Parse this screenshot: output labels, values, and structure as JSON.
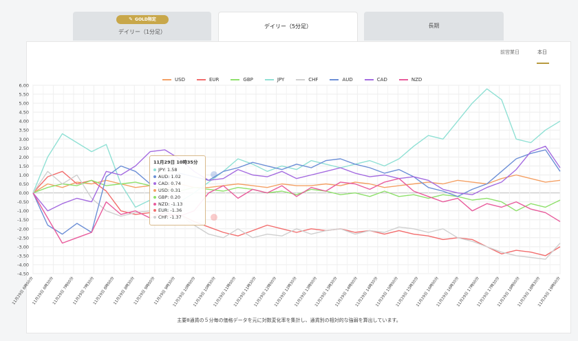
{
  "tabs": [
    {
      "label": "デイリー（1分足）",
      "badge": "GOLD限定",
      "active": false
    },
    {
      "label": "デイリー（5分足）",
      "active": true
    },
    {
      "label": "長期",
      "active": false
    }
  ],
  "subtabs": [
    "前営業日",
    "本日"
  ],
  "footnote": "主要8通貨の５分毎の価格データを元に対数変化率を集計し、通貨別の相対的な強弱を算出しています。",
  "tooltip": {
    "title": "11月29日 10時35分",
    "rows": [
      "JPY: 1.58",
      "AUD: 1.02",
      "CAD: 0.74",
      "USD: 0.31",
      "GBP: 0.20",
      "NZD: -1.13",
      "EUR: -1.36",
      "CHF: -1.37"
    ],
    "colors": [
      "#8fe0d4",
      "#6b8ed6",
      "#a46be0",
      "#f4a064",
      "#8ee06b",
      "#e85a9b",
      "#f26c6c",
      "#cfcfcf"
    ]
  },
  "chart_data": {
    "type": "line",
    "ylim": [
      -4.5,
      6.0
    ],
    "yticks": [
      "6.00",
      "5.50",
      "5.00",
      "4.50",
      "4.00",
      "3.50",
      "3.00",
      "2.50",
      "2.00",
      "1.50",
      "1.00",
      "0.50",
      "0.00",
      "-0.50",
      "-1.00",
      "-1.50",
      "-2.00",
      "-2.50",
      "-3.00",
      "-3.50",
      "-4.00",
      "-4.50"
    ],
    "x_labels": [
      "11月29日 6時00分",
      "11月29日 6時30分",
      "11月29日 7時00分",
      "11月29日 7時30分",
      "11月29日 8時00分",
      "11月29日 8時30分",
      "11月29日 9時00分",
      "11月29日 9時30分",
      "11月29日 10時00分",
      "11月29日 10時30分",
      "11月29日 11時00分",
      "11月29日 11時30分",
      "11月29日 12時00分",
      "11月29日 12時30分",
      "11月29日 13時00分",
      "11月29日 13時30分",
      "11月29日 14時00分",
      "11月29日 14時30分",
      "11月29日 15時00分",
      "11月29日 15時30分",
      "11月29日 16時00分",
      "11月29日 16時30分",
      "11月29日 17時00分",
      "11月29日 17時30分",
      "11月29日 18時00分",
      "11月29日 18時30分",
      "11月29日 19時00分"
    ],
    "series": [
      {
        "name": "USD",
        "color": "#f4a064",
        "values": [
          0,
          0.5,
          0.3,
          0.6,
          0.5,
          0.7,
          0.5,
          0.3,
          0.4,
          0.2,
          0.5,
          0.3,
          0.3,
          0.4,
          0.5,
          0.4,
          0.3,
          0.5,
          0.4,
          0.4,
          0.5,
          0.4,
          0.6,
          0.5,
          0.3,
          0.4,
          0.5,
          0.6,
          0.5,
          0.7,
          0.6,
          0.5,
          0.8,
          1.0,
          0.8,
          0.6,
          0.7
        ]
      },
      {
        "name": "EUR",
        "color": "#f26c6c",
        "values": [
          0,
          0.9,
          1.2,
          0.5,
          0.7,
          0.1,
          -1.0,
          -1.2,
          -1.1,
          -1.3,
          -1.2,
          -1.6,
          -1.9,
          -2.2,
          -2.4,
          -2.1,
          -1.8,
          -2.0,
          -2.2,
          -2.0,
          -2.1,
          -2.0,
          -2.2,
          -2.1,
          -2.3,
          -2.1,
          -2.3,
          -2.4,
          -2.6,
          -2.5,
          -2.6,
          -3.0,
          -3.4,
          -3.2,
          -3.3,
          -3.5,
          -3.0
        ]
      },
      {
        "name": "GBP",
        "color": "#8ee06b",
        "values": [
          0,
          0.3,
          0.5,
          0.4,
          0.7,
          0.4,
          0.5,
          0.6,
          0.4,
          0.2,
          0.1,
          0.3,
          0.2,
          0.1,
          0.3,
          0.2,
          0.0,
          0.1,
          -0.1,
          0.2,
          0.1,
          -0.1,
          0.0,
          -0.2,
          0.1,
          -0.2,
          -0.1,
          -0.3,
          -0.1,
          -0.2,
          -0.4,
          -0.3,
          -0.5,
          -1.0,
          -0.6,
          -0.8,
          -0.4
        ]
      },
      {
        "name": "JPY",
        "color": "#8fe0d4",
        "values": [
          0,
          2.0,
          3.3,
          2.8,
          2.3,
          2.7,
          0.5,
          -0.8,
          -0.4,
          -1.0,
          -0.5,
          0.0,
          0.6,
          1.2,
          1.9,
          1.6,
          1.2,
          1.5,
          1.3,
          1.8,
          1.6,
          1.4,
          1.6,
          1.8,
          1.5,
          1.9,
          2.6,
          3.2,
          3.0,
          4.0,
          5.0,
          5.8,
          5.2,
          3.0,
          2.8,
          3.5,
          4.0
        ]
      },
      {
        "name": "CHF",
        "color": "#cfcfcf",
        "values": [
          0,
          1.2,
          0.5,
          1.0,
          -0.3,
          -1.0,
          -1.3,
          -1.1,
          -1.0,
          -0.5,
          -1.2,
          -1.8,
          -2.3,
          -2.5,
          -2.0,
          -2.5,
          -2.3,
          -2.4,
          -2.0,
          -2.3,
          -2.1,
          -2.0,
          -2.3,
          -2.1,
          -2.2,
          -1.9,
          -2.0,
          -2.2,
          -2.0,
          -2.5,
          -2.7,
          -3.0,
          -3.3,
          -3.5,
          -3.6,
          -3.7,
          -2.8
        ]
      },
      {
        "name": "AUD",
        "color": "#6b8ed6",
        "values": [
          0,
          -1.8,
          -2.3,
          -1.7,
          -2.2,
          0.9,
          1.5,
          1.2,
          0.5,
          0.8,
          1.1,
          0.9,
          0.7,
          1.2,
          1.4,
          1.7,
          1.5,
          1.3,
          1.6,
          1.4,
          1.8,
          1.9,
          1.6,
          1.4,
          1.1,
          1.3,
          0.9,
          0.3,
          0.1,
          -0.2,
          0.2,
          0.5,
          1.2,
          1.9,
          2.2,
          2.4,
          1.2
        ]
      },
      {
        "name": "CAD",
        "color": "#a46be0",
        "values": [
          0,
          -1.0,
          -0.6,
          -0.3,
          -0.5,
          1.2,
          1.0,
          1.5,
          2.3,
          2.4,
          1.9,
          1.2,
          0.7,
          0.8,
          1.3,
          1.0,
          0.9,
          1.2,
          0.8,
          1.0,
          1.2,
          1.4,
          1.1,
          0.9,
          1.0,
          0.8,
          0.9,
          0.7,
          0.2,
          0.0,
          -0.1,
          0.3,
          0.6,
          1.3,
          2.3,
          2.6,
          1.4
        ]
      },
      {
        "name": "NZD",
        "color": "#e85a9b",
        "values": [
          0,
          -1.4,
          -2.8,
          -2.5,
          -2.2,
          -0.5,
          -1.2,
          -1.0,
          -1.4,
          -1.1,
          -1.3,
          -1.0,
          0.0,
          0.4,
          -0.3,
          0.2,
          0.0,
          0.4,
          -0.2,
          0.3,
          0.1,
          0.6,
          0.5,
          0.2,
          0.6,
          0.8,
          0.1,
          -0.2,
          -0.5,
          -0.3,
          -1.0,
          -0.6,
          -0.8,
          -0.5,
          -0.9,
          -1.1,
          -1.6
        ]
      }
    ]
  }
}
